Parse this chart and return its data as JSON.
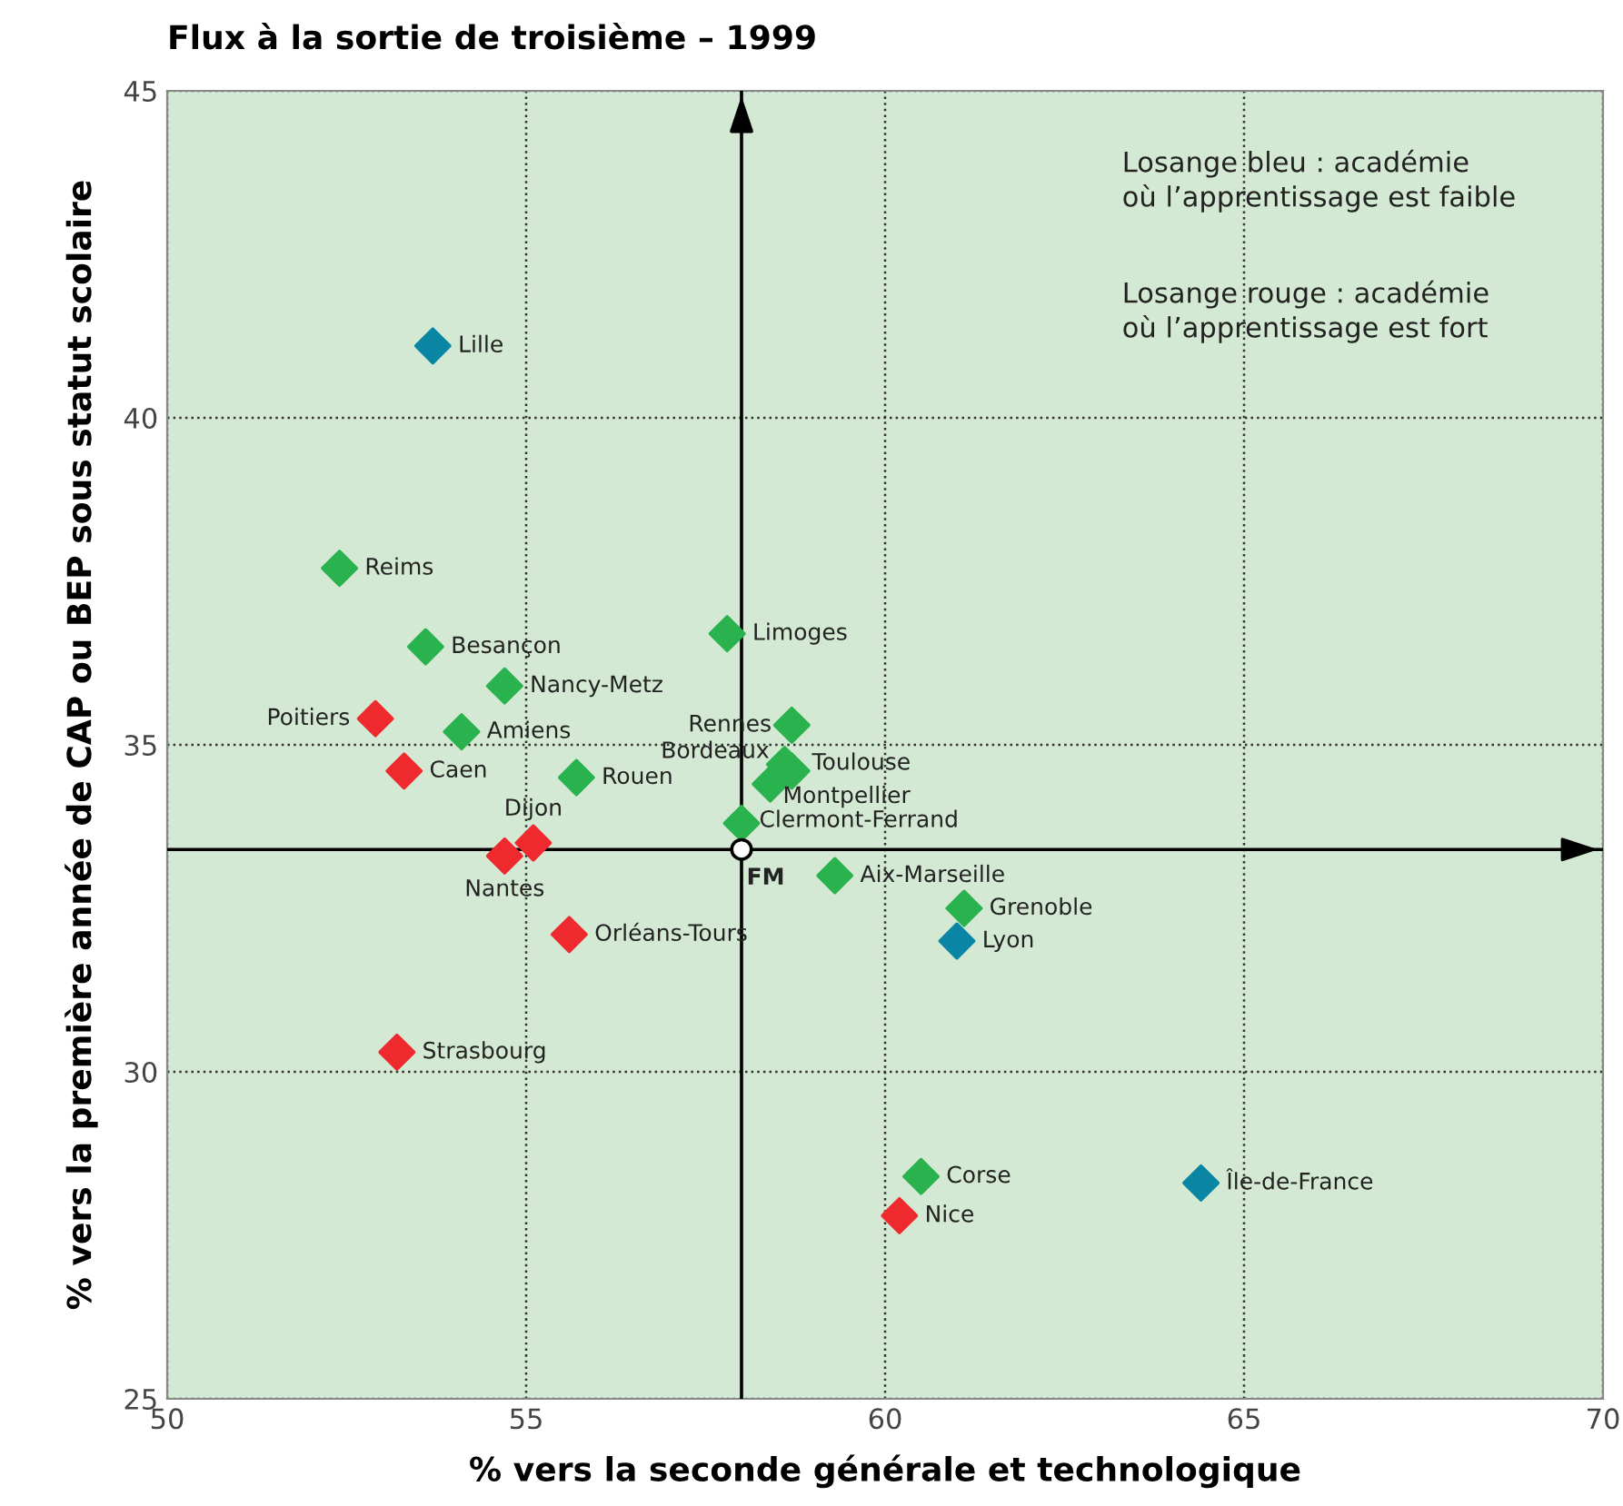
{
  "chart_data": {
    "type": "scatter",
    "title": "Flux à la sortie de troisième – 1999",
    "xlabel": "% vers la seconde générale et technologique",
    "ylabel": "% vers la première année de CAP ou BEP sous statut scolaire",
    "xlim": [
      50,
      70
    ],
    "xticks": [
      50,
      55,
      60,
      65,
      70
    ],
    "ylim": [
      25,
      45
    ],
    "yticks": [
      25,
      30,
      35,
      40,
      45
    ],
    "grid": true,
    "marker": "diamond",
    "series": [
      {
        "color": "#0a86a4",
        "x": [
          53.7,
          61.0,
          64.4
        ],
        "values": [
          41.1,
          32.0,
          28.3
        ],
        "value_labels": [
          "Lille",
          "Lyon",
          "Île-de-France"
        ]
      },
      {
        "color": "#2ab24e",
        "x": [
          52.4,
          53.6,
          54.7,
          54.1,
          55.7,
          57.8,
          58.7,
          58.6,
          58.7,
          58.4,
          58.0,
          59.3,
          61.1,
          60.5
        ],
        "values": [
          37.7,
          36.5,
          35.9,
          35.2,
          34.5,
          36.7,
          35.3,
          34.7,
          34.6,
          34.4,
          33.8,
          33.0,
          32.5,
          28.4
        ],
        "value_labels": [
          "Reims",
          "Besançon",
          "Nancy-Metz",
          "Amiens",
          "Rouen",
          "Limoges",
          "Rennes",
          "Bordeaux",
          "Toulouse",
          "Montpellier",
          "Clermont-Ferrand",
          "Aix-Marseille",
          "Grenoble",
          "Corse"
        ]
      },
      {
        "color": "#ee2a2e",
        "x": [
          52.9,
          53.3,
          55.1,
          54.7,
          55.6,
          53.2,
          60.2
        ],
        "values": [
          35.4,
          34.6,
          33.5,
          33.3,
          32.1,
          30.3,
          27.8
        ],
        "value_labels": [
          "Poitiers",
          "Caen",
          "Dijon",
          "Nantes",
          "Orléans-Tours",
          "Strasbourg",
          "Nice"
        ]
      },
      {
        "color": "#ffffff",
        "marker": "circle",
        "x": [
          58.0
        ],
        "values": [
          33.4
        ],
        "value_labels": [
          "FM"
        ]
      }
    ],
    "ref_lines": [
      {
        "axis": "x",
        "value": 58.0,
        "color": "#000000"
      },
      {
        "axis": "y",
        "value": 33.4,
        "color": "#000000"
      }
    ],
    "annotations": [
      "Losange bleu : académie\noù l’apprentissage est faible",
      "Losange rouge : académie\noù l’apprentissage est fort"
    ]
  }
}
